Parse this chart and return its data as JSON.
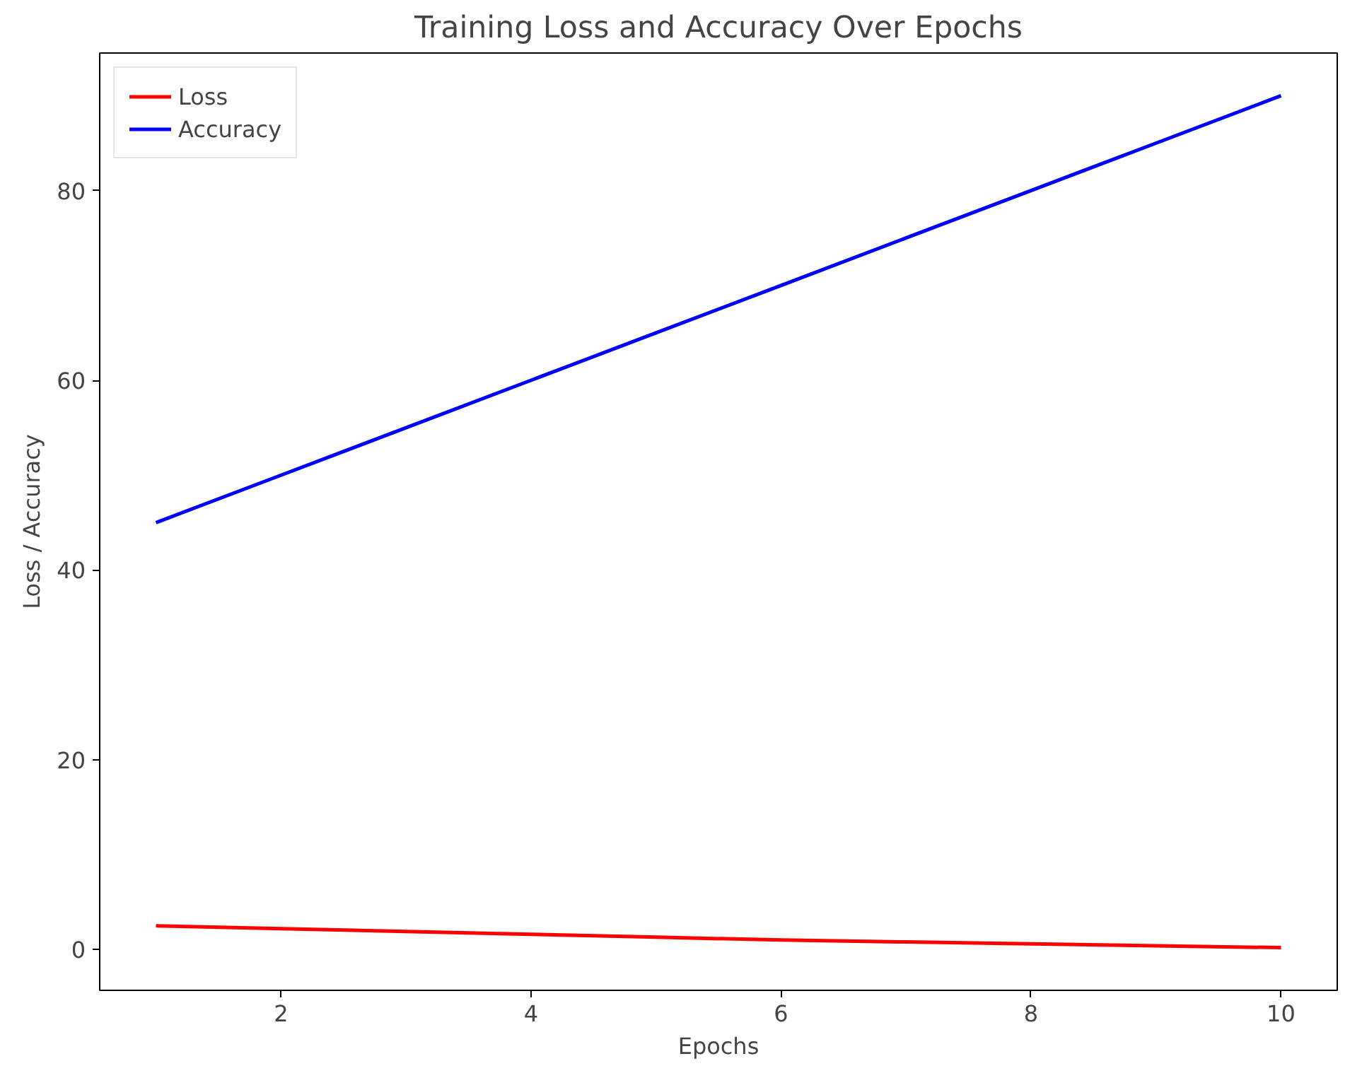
{
  "chart_data": {
    "type": "line",
    "title": "Training Loss and Accuracy Over Epochs",
    "xlabel": "Epochs",
    "ylabel": "Loss / Accuracy",
    "x": [
      1,
      2,
      3,
      4,
      5,
      6,
      7,
      8,
      9,
      10
    ],
    "series": [
      {
        "name": "Loss",
        "color": "#ff0000",
        "values": [
          2.5,
          2.2,
          1.9,
          1.6,
          1.3,
          1.0,
          0.8,
          0.6,
          0.4,
          0.2
        ]
      },
      {
        "name": "Accuracy",
        "color": "#0000ff",
        "values": [
          45,
          50,
          55,
          60,
          65,
          70,
          75,
          80,
          85,
          90
        ]
      }
    ],
    "xlim": [
      0.55,
      10.45
    ],
    "ylim": [
      -4.3,
      94.5
    ],
    "xticks": [
      2,
      4,
      6,
      8,
      10
    ],
    "yticks": [
      0,
      20,
      40,
      60,
      80
    ],
    "legend": "top left",
    "grid": false,
    "marker": "none",
    "line_style": "solid"
  }
}
